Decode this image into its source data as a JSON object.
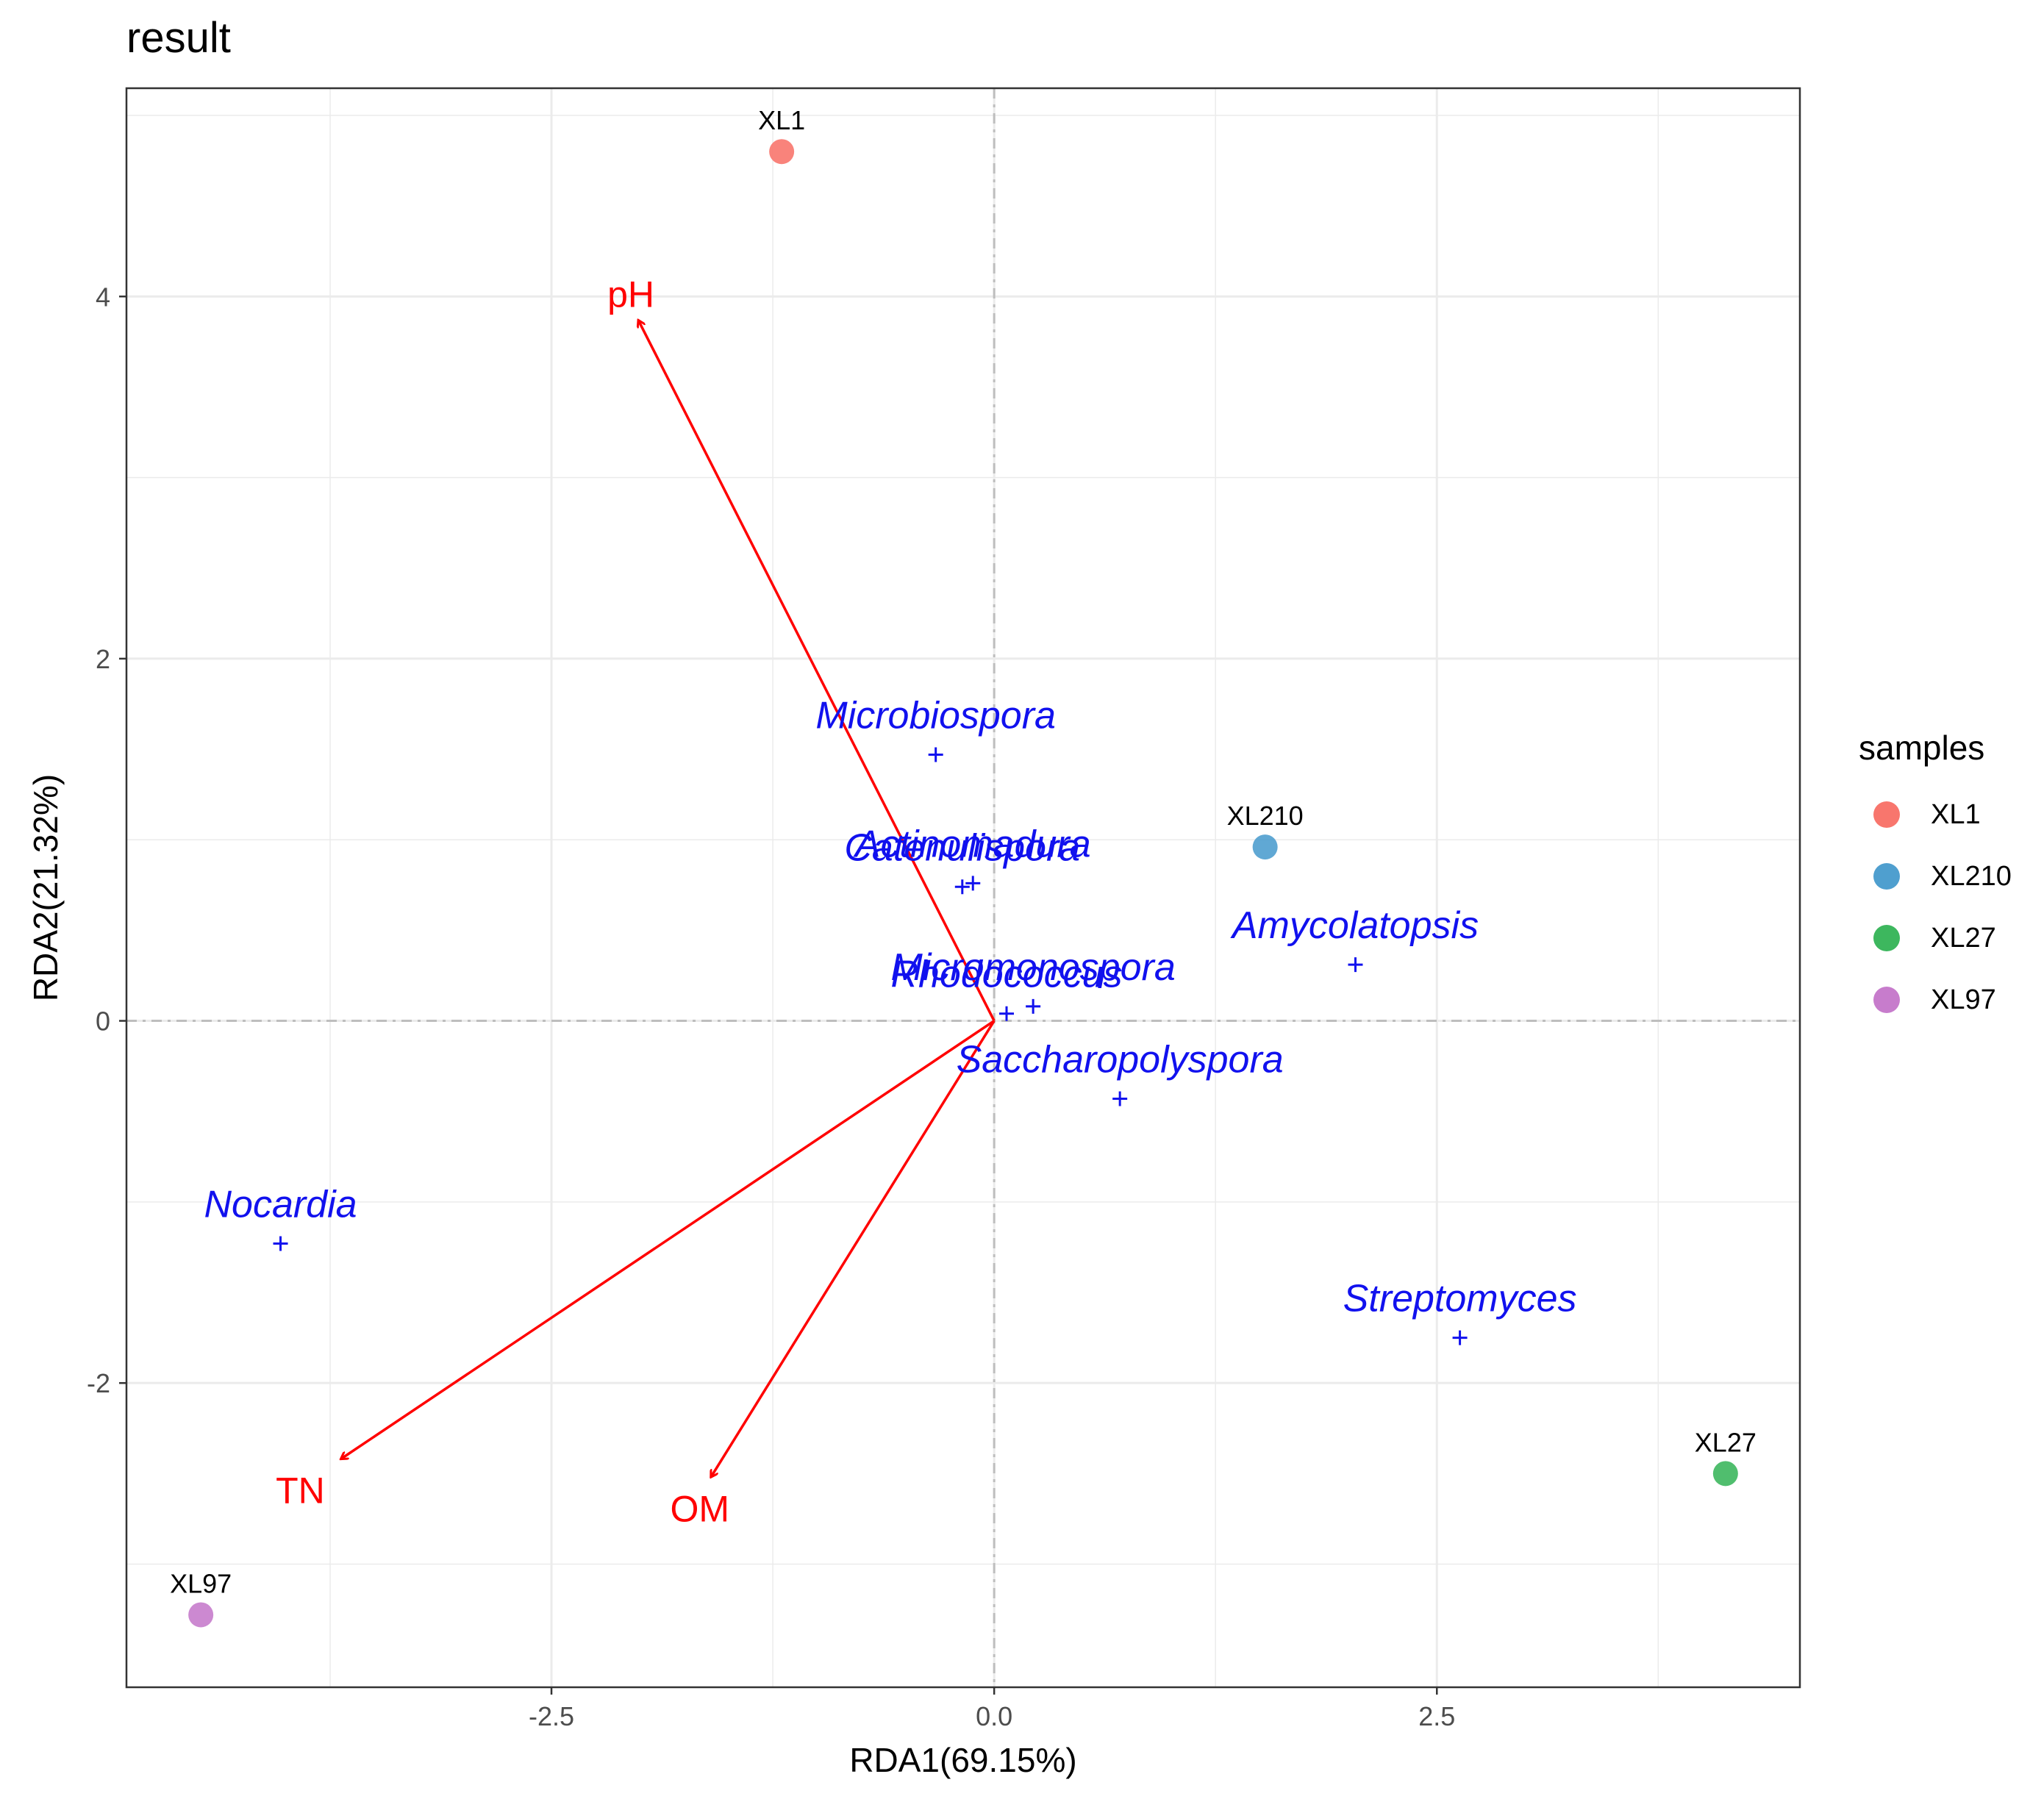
{
  "chart_data": {
    "type": "scatter",
    "title": "result",
    "xlabel": "RDA1(69.15%)",
    "ylabel": "RDA2(21.32%)",
    "xlim": [
      -4.9,
      4.55
    ],
    "ylim": [
      -3.68,
      5.15
    ],
    "x_ticks": [
      -2.5,
      0,
      2.5
    ],
    "x_tick_labels": [
      "-2.5",
      "0.0",
      "2.5"
    ],
    "y_ticks": [
      -2,
      0,
      2,
      4
    ],
    "y_tick_labels": [
      "-2",
      "0",
      "2",
      "4"
    ],
    "grid": true,
    "reference_lines": {
      "x": 0,
      "y": 0,
      "style": "dashed"
    },
    "samples": [
      {
        "name": "XL1",
        "x": -1.2,
        "y": 4.8,
        "color": "#F8766D"
      },
      {
        "name": "XL210",
        "x": 1.53,
        "y": 0.96,
        "color": "#4F9FCF"
      },
      {
        "name": "XL27",
        "x": 4.13,
        "y": -2.5,
        "color": "#3DB75E"
      },
      {
        "name": "XL97",
        "x": -4.48,
        "y": -3.28,
        "color": "#C77CCC"
      }
    ],
    "species": [
      {
        "name": "Microbiospora",
        "x": -0.33,
        "y": 1.47
      },
      {
        "name": "Actinomadura",
        "x": -0.12,
        "y": 0.76
      },
      {
        "name": "Catenulispora",
        "x": -0.18,
        "y": 0.74
      },
      {
        "name": "Micromonospora",
        "x": 0.22,
        "y": 0.08
      },
      {
        "name": "Rhodococcus",
        "x": 0.07,
        "y": 0.04
      },
      {
        "name": "Amycolatopsis",
        "x": 2.04,
        "y": 0.31
      },
      {
        "name": "Saccharopolyspora",
        "x": 0.71,
        "y": -0.43
      },
      {
        "name": "Nocardia",
        "x": -4.03,
        "y": -1.23
      },
      {
        "name": "Streptomyces",
        "x": 2.63,
        "y": -1.75
      }
    ],
    "env_vectors": [
      {
        "name": "pH",
        "x": -2.01,
        "y": 3.87
      },
      {
        "name": "TN",
        "x": -3.69,
        "y": -2.42
      },
      {
        "name": "OM",
        "x": -1.6,
        "y": -2.52
      }
    ],
    "legend": {
      "title": "samples",
      "position": "right"
    },
    "colors": {
      "species": "#1111EE",
      "env": "#FF0000",
      "grid": "#EBEBEB",
      "refline": "#BEBEBE"
    }
  }
}
